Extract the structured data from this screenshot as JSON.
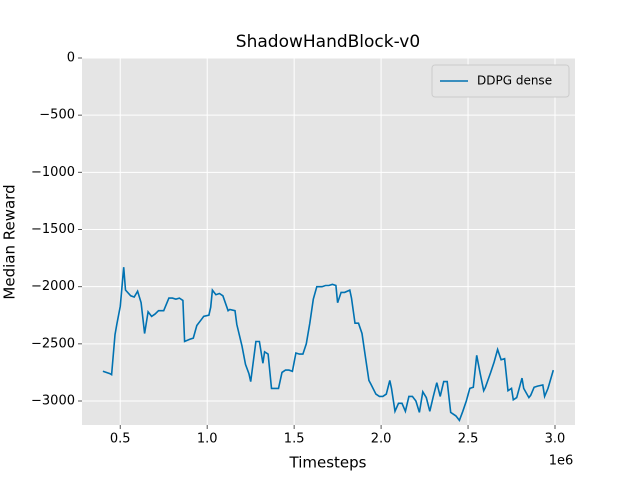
{
  "chart_data": {
    "type": "line",
    "title": "ShadowHandBlock-v0",
    "xlabel": "Timesteps",
    "ylabel": "Median Reward",
    "x_offset_label": "1e6",
    "x": [
      0.4,
      0.44,
      0.45,
      0.47,
      0.48,
      0.5,
      0.52,
      0.53,
      0.56,
      0.58,
      0.6,
      0.62,
      0.64,
      0.66,
      0.68,
      0.7,
      0.72,
      0.75,
      0.78,
      0.8,
      0.82,
      0.84,
      0.86,
      0.87,
      0.9,
      0.92,
      0.94,
      0.97,
      0.98,
      1.01,
      1.02,
      1.03,
      1.05,
      1.07,
      1.09,
      1.12,
      1.13,
      1.16,
      1.17,
      1.2,
      1.22,
      1.24,
      1.25,
      1.28,
      1.3,
      1.32,
      1.33,
      1.35,
      1.37,
      1.39,
      1.41,
      1.43,
      1.45,
      1.47,
      1.49,
      1.51,
      1.53,
      1.55,
      1.57,
      1.59,
      1.61,
      1.63,
      1.66,
      1.68,
      1.7,
      1.72,
      1.74,
      1.75,
      1.77,
      1.79,
      1.82,
      1.83,
      1.85,
      1.87,
      1.89,
      1.91,
      1.93,
      1.94,
      1.97,
      1.99,
      2.01,
      2.03,
      2.05,
      2.06,
      2.08,
      2.1,
      2.12,
      2.14,
      2.16,
      2.18,
      2.2,
      2.22,
      2.24,
      2.26,
      2.28,
      2.3,
      2.32,
      2.34,
      2.36,
      2.38,
      2.4,
      2.43,
      2.45,
      2.47,
      2.49,
      2.51,
      2.53,
      2.55,
      2.57,
      2.59,
      2.6,
      2.63,
      2.65,
      2.67,
      2.69,
      2.71,
      2.73,
      2.75,
      2.76,
      2.78,
      2.81,
      2.82,
      2.85,
      2.86,
      2.88,
      2.9,
      2.93,
      2.94,
      2.96,
      2.99
    ],
    "series": [
      {
        "name": "DDPG dense",
        "color": "#0072b2",
        "values": [
          -2740,
          -2760,
          -2770,
          -2420,
          -2330,
          -2170,
          -1830,
          -2030,
          -2080,
          -2090,
          -2040,
          -2140,
          -2410,
          -2220,
          -2260,
          -2240,
          -2210,
          -2210,
          -2100,
          -2100,
          -2110,
          -2100,
          -2120,
          -2480,
          -2460,
          -2450,
          -2340,
          -2280,
          -2260,
          -2250,
          -2180,
          -2030,
          -2070,
          -2060,
          -2080,
          -2210,
          -2200,
          -2210,
          -2330,
          -2520,
          -2680,
          -2760,
          -2830,
          -2480,
          -2480,
          -2670,
          -2570,
          -2590,
          -2890,
          -2890,
          -2890,
          -2750,
          -2730,
          -2730,
          -2740,
          -2580,
          -2590,
          -2590,
          -2500,
          -2320,
          -2110,
          -2000,
          -2000,
          -1990,
          -1990,
          -1980,
          -1990,
          -2140,
          -2050,
          -2050,
          -2030,
          -2100,
          -2320,
          -2320,
          -2410,
          -2620,
          -2820,
          -2850,
          -2940,
          -2960,
          -2960,
          -2940,
          -2820,
          -2890,
          -3090,
          -3020,
          -3020,
          -3090,
          -2960,
          -2960,
          -3000,
          -3100,
          -2920,
          -2970,
          -3090,
          -2960,
          -2840,
          -2960,
          -2830,
          -2830,
          -3100,
          -3130,
          -3170,
          -3090,
          -3000,
          -2890,
          -2880,
          -2600,
          -2760,
          -2910,
          -2880,
          -2750,
          -2660,
          -2550,
          -2640,
          -2630,
          -2910,
          -2890,
          -2990,
          -2970,
          -2800,
          -2890,
          -2970,
          -2950,
          -2880,
          -2870,
          -2860,
          -2960,
          -2890,
          -2730
        ]
      }
    ],
    "xlim": [
      0.28,
      3.115
    ],
    "ylim": [
      -3210,
      0
    ],
    "xticks": [
      0.5,
      {
        "value": 1,
        "label": "1.0"
      },
      1.5,
      {
        "value": 2,
        "label": "2.0"
      },
      2.5,
      {
        "value": 3,
        "label": "3.0"
      }
    ],
    "yticks": [
      0,
      {
        "value": -500,
        "label": "−500"
      },
      {
        "value": -1000,
        "label": "−1000"
      },
      {
        "value": -1500,
        "label": "−1500"
      },
      {
        "value": -2000,
        "label": "−2000"
      },
      {
        "value": -2500,
        "label": "−2500"
      },
      {
        "value": -3000,
        "label": "−3000"
      }
    ],
    "grid": true,
    "legend": "upper right"
  }
}
